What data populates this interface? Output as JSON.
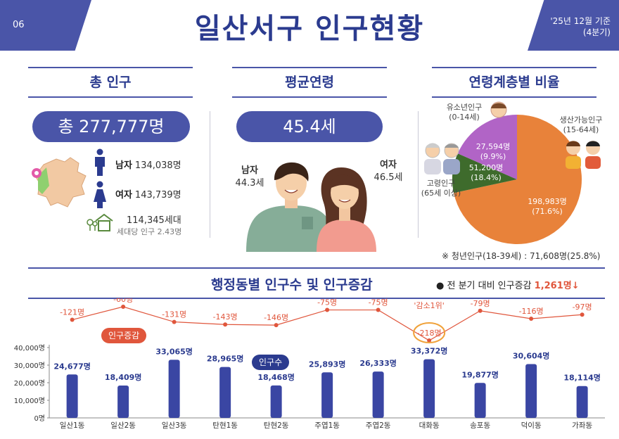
{
  "header": {
    "page_no": "06",
    "title": "일산서구 인구현황",
    "date_line1": "'25년 12월 기준",
    "date_line2": "(4분기)"
  },
  "sections": {
    "total": "총 인구",
    "avg_age": "평균연령",
    "ratio": "연령계층별 비율"
  },
  "total": {
    "pill": "총 277,777명",
    "male_label": "남자",
    "male_value": "134,038명",
    "female_label": "여자",
    "female_value": "143,739명",
    "households": "114,345세대",
    "per_household": "세대당 인구 2.43명"
  },
  "avg_age": {
    "pill": "45.4세",
    "male_label": "남자",
    "male_value": "44.3세",
    "female_label": "여자",
    "female_value": "46.5세"
  },
  "colors": {
    "brand": "#4a55a8",
    "brand_dark": "#2b3b8f",
    "bar": "#3a46a3",
    "change": "#e0563c",
    "working": "#e8823a",
    "elderly": "#b164c6",
    "youth": "#3e6b2c"
  },
  "ratio": {
    "youth_label": "유소년인구",
    "youth_range": "(0-14세)",
    "youth_value": "27,594명",
    "youth_pct": "(9.9%)",
    "elderly_label": "고령인구",
    "elderly_range": "(65세 이상)",
    "elderly_value": "51,200명",
    "elderly_pct": "(18.4%)",
    "working_label": "생산가능인구",
    "working_range": "(15-64세)",
    "working_value": "198,983명",
    "working_pct": "(71.6%)",
    "note": "※ 청년인구(18-39세) : 71,608명(25.8%)"
  },
  "bottom": {
    "title": "행정동별 인구수 및 인구증감",
    "note_prefix": "● 전 분기 대비 인구증감",
    "note_value": "1,261명↓",
    "tag_change": "인구증감",
    "tag_pop": "인구수",
    "top_decrease": "'감소1위'"
  },
  "chart_data": {
    "type": "bar",
    "categories": [
      "일산1동",
      "일산2동",
      "일산3동",
      "탄현1동",
      "탄현2동",
      "주엽1동",
      "주엽2동",
      "대화동",
      "송포동",
      "덕이동",
      "가좌동"
    ],
    "series": [
      {
        "name": "인구수",
        "values": [
          24677,
          18409,
          33065,
          28965,
          18468,
          25893,
          26333,
          33372,
          19877,
          30604,
          18114
        ],
        "labels": [
          "24,677명",
          "18,409명",
          "33,065명",
          "28,965명",
          "18,468명",
          "25,893명",
          "26,333명",
          "33,372명",
          "19,877명",
          "30,604명",
          "18,114명"
        ]
      },
      {
        "name": "인구증감",
        "values": [
          -121,
          -60,
          -131,
          -143,
          -146,
          -75,
          -75,
          -218,
          -79,
          -116,
          -97
        ],
        "labels": [
          "-121명",
          "-60명",
          "-131명",
          "-143명",
          "-146명",
          "-75명",
          "-75명",
          "-218명",
          "-79명",
          "-116명",
          "-97명"
        ]
      }
    ],
    "yticks": [
      "0명",
      "10,000명",
      "20,000명",
      "30,000명",
      "40,000명"
    ],
    "ylim": [
      0,
      40000
    ]
  }
}
